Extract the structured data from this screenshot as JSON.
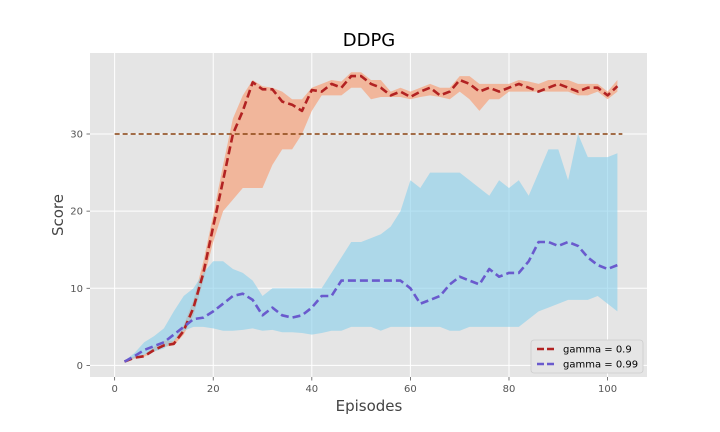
{
  "chart_data": {
    "type": "line",
    "title": "DDPG",
    "xlabel": "Episodes",
    "ylabel": "Score",
    "xlim": [
      -5,
      108
    ],
    "ylim": [
      -1.5,
      40.5
    ],
    "xticks": [
      0,
      20,
      40,
      60,
      80,
      100
    ],
    "yticks": [
      0,
      10,
      20,
      30
    ],
    "grid": true,
    "legend_position": "lower-right",
    "threshold": {
      "value": 30,
      "x_range": [
        0,
        103
      ],
      "color": "#8B4513"
    },
    "series": [
      {
        "name": "gamma = 0.9",
        "color": "#B22222",
        "band_color": "#F4A582",
        "x": [
          2,
          4,
          6,
          8,
          10,
          12,
          14,
          16,
          18,
          20,
          22,
          24,
          26,
          28,
          30,
          32,
          34,
          36,
          38,
          40,
          42,
          44,
          46,
          48,
          50,
          52,
          54,
          56,
          58,
          60,
          62,
          64,
          66,
          68,
          70,
          72,
          74,
          76,
          78,
          80,
          82,
          84,
          86,
          88,
          90,
          92,
          94,
          96,
          98,
          100,
          102
        ],
        "mean": [
          0.5,
          1.0,
          1.2,
          2.0,
          2.6,
          2.8,
          4.5,
          7.5,
          12,
          18,
          24,
          30,
          33,
          36.7,
          35.8,
          35.8,
          34.2,
          33.8,
          33,
          35.7,
          35.5,
          36.5,
          36,
          37.5,
          37.5,
          36.5,
          36,
          35,
          35.5,
          34.8,
          35.5,
          36,
          35,
          35.5,
          37,
          36.5,
          35.5,
          36,
          35.5,
          36,
          36.5,
          36,
          35.5,
          36,
          36.5,
          36,
          35.5,
          36,
          36,
          35,
          36.2
        ],
        "lower": [
          0.5,
          0.9,
          1.1,
          1.8,
          2.4,
          2.6,
          4.0,
          6.5,
          11,
          16,
          20,
          21.5,
          23,
          23,
          23,
          26,
          28,
          28,
          30,
          33,
          35,
          35,
          35,
          36,
          36,
          34.5,
          34.8,
          34.8,
          34.8,
          34.5,
          34.8,
          35,
          34.8,
          34.5,
          35.5,
          34.5,
          33,
          34.5,
          34.5,
          35.5,
          35.5,
          35.5,
          35.5,
          35.5,
          35.5,
          35.5,
          35,
          35,
          35.5,
          34.5,
          35.5
        ],
        "upper": [
          0.6,
          1.2,
          1.4,
          2.4,
          3.2,
          3.2,
          5.2,
          8.5,
          13.5,
          19.5,
          26,
          32,
          35,
          37,
          36.2,
          36,
          35.5,
          34.5,
          34.5,
          36,
          36.5,
          37,
          36.8,
          38,
          38,
          37,
          37,
          35.5,
          36,
          35.5,
          36,
          36.5,
          36,
          36,
          37.5,
          37.5,
          36.5,
          36.5,
          36.5,
          36.5,
          37,
          36.8,
          36.5,
          37,
          37,
          37,
          36.5,
          36.5,
          36.5,
          35.5,
          37
        ]
      },
      {
        "name": "gamma = 0.99",
        "color": "#6A5ACD",
        "band_color": "#87CEEB",
        "x": [
          2,
          4,
          6,
          8,
          10,
          12,
          14,
          16,
          18,
          20,
          22,
          24,
          26,
          28,
          30,
          32,
          34,
          36,
          38,
          40,
          42,
          44,
          46,
          48,
          50,
          52,
          54,
          56,
          58,
          60,
          62,
          64,
          66,
          68,
          70,
          72,
          74,
          76,
          78,
          80,
          82,
          84,
          86,
          88,
          90,
          92,
          94,
          96,
          98,
          100,
          102
        ],
        "mean": [
          0.5,
          1.2,
          2,
          2.5,
          3,
          4,
          5,
          6,
          6.2,
          7,
          8,
          9,
          9.3,
          8.5,
          6.5,
          7.5,
          6.5,
          6.2,
          6.5,
          7.5,
          9,
          9,
          11,
          11,
          11,
          11,
          11,
          11,
          11,
          10,
          8,
          8.5,
          9,
          10.5,
          11.5,
          11,
          10.5,
          12.5,
          11.5,
          12,
          12,
          13.5,
          16,
          16,
          15.5,
          16,
          15.5,
          14,
          13,
          12.5,
          13
        ],
        "lower": [
          0.4,
          1.0,
          1.4,
          1.8,
          2.2,
          3.2,
          4.5,
          5,
          5,
          4.8,
          4.5,
          4.5,
          4.6,
          4.8,
          4.5,
          4.6,
          4.3,
          4.3,
          4.2,
          4,
          4.2,
          4.5,
          4.5,
          5,
          5,
          5,
          4.5,
          5,
          5,
          5,
          5,
          5,
          5,
          4.5,
          4.5,
          5,
          5,
          5,
          5,
          5,
          5,
          6,
          7,
          7.5,
          8,
          8.5,
          8.5,
          8.5,
          9,
          8,
          7
        ],
        "upper": [
          0.6,
          1.6,
          3,
          3.8,
          4.8,
          7,
          9,
          10,
          12,
          13.5,
          13.5,
          12.5,
          12,
          11,
          9,
          10,
          10,
          10,
          10,
          10,
          10,
          12,
          14,
          16,
          16,
          16.5,
          17,
          18,
          20,
          24,
          23,
          25,
          25,
          25,
          25,
          24,
          23,
          22,
          24,
          23,
          24,
          22,
          25,
          28,
          28,
          24,
          30,
          27,
          27,
          27,
          27.5
        ]
      }
    ]
  }
}
